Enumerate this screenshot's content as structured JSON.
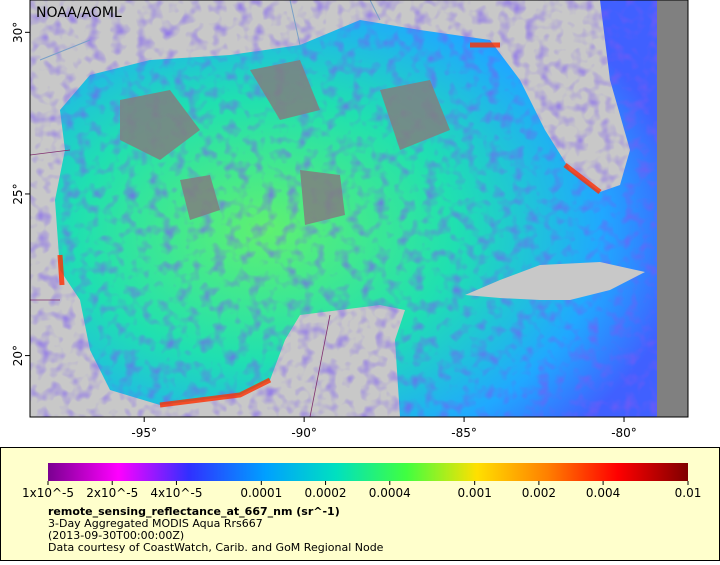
{
  "map": {
    "credit": "NOAA/AOML",
    "xlim": [
      -98.57,
      -78.0
    ],
    "ylim": [
      18.1,
      31.0
    ],
    "xticks": [
      {
        "value": -95,
        "label": "-95°"
      },
      {
        "value": -90,
        "label": "-90°"
      },
      {
        "value": -85,
        "label": "-85°"
      },
      {
        "value": -80,
        "label": "-80°"
      }
    ],
    "yticks": [
      {
        "value": 20,
        "label": "20°"
      },
      {
        "value": 25,
        "label": "25°"
      },
      {
        "value": 30,
        "label": "30°"
      }
    ]
  },
  "colorbar": {
    "range": [
      1e-05,
      0.01
    ],
    "log": true,
    "ticks": [
      {
        "value": 1e-05,
        "label": "1x10^-5"
      },
      {
        "value": 2e-05,
        "label": "2x10^-5"
      },
      {
        "value": 4e-05,
        "label": "4x10^-5"
      },
      0.0001,
      0.0002,
      0.0004,
      0.001,
      0.002,
      0.004,
      0.01
    ]
  },
  "legend": {
    "variable": "remote_sensing_reflectance_at_667_nm (sr^-1)",
    "lines": [
      "3-Day Aggregated MODIS Aqua Rrs667",
      "(2013-09-30T00:00:00Z)",
      "Data courtesy of CoastWatch, Carib. and GoM Regional Node"
    ]
  }
}
